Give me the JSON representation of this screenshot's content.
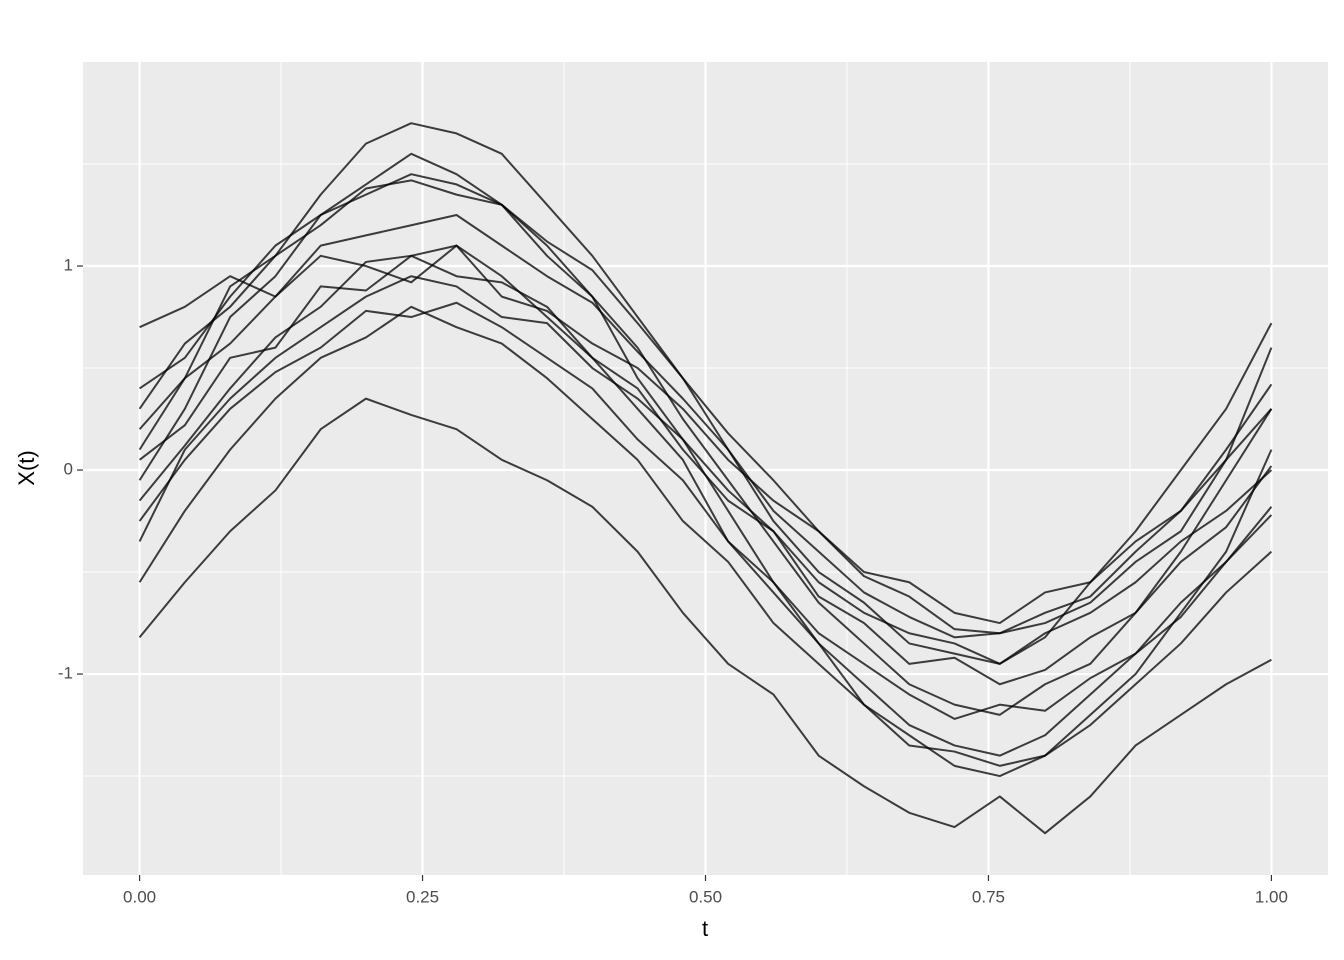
{
  "chart_data": {
    "type": "line",
    "xlabel": "t",
    "ylabel": "X(t)",
    "color": "#000000",
    "alpha": 0.75,
    "xlim": [
      -0.05,
      1.05
    ],
    "ylim": [
      -1.985,
      2.0
    ],
    "xticks": [
      {
        "value": 0,
        "label": "0.00"
      },
      {
        "value": 0.25,
        "label": "0.25"
      },
      {
        "value": 0.5,
        "label": "0.50"
      },
      {
        "value": 0.75,
        "label": "0.75"
      },
      {
        "value": 1,
        "label": "1.00"
      }
    ],
    "yticks": [
      -1,
      0,
      1
    ],
    "grid": true,
    "x": [
      0,
      0.04,
      0.08,
      0.12,
      0.16,
      0.2,
      0.24,
      0.28,
      0.32,
      0.36,
      0.4,
      0.44,
      0.48,
      0.52,
      0.56,
      0.6,
      0.64,
      0.68,
      0.72,
      0.76,
      0.8,
      0.84,
      0.88,
      0.92,
      0.96,
      1
    ],
    "series": [
      {
        "values": [
          0.3,
          0.62,
          0.8,
          1.05,
          1.2,
          1.38,
          1.42,
          1.35,
          1.3,
          1.12,
          0.98,
          0.72,
          0.45,
          0.18,
          -0.05,
          -0.3,
          -0.52,
          -0.62,
          -0.78,
          -0.8,
          -0.7,
          -0.62,
          -0.4,
          -0.2,
          0.1,
          0.42
        ]
      },
      {
        "values": [
          0.05,
          0.22,
          0.55,
          0.6,
          0.9,
          0.88,
          1.05,
          0.95,
          0.92,
          0.8,
          0.55,
          0.4,
          0.1,
          -0.15,
          -0.3,
          -0.62,
          -0.75,
          -0.95,
          -0.92,
          -1.05,
          -0.98,
          -0.82,
          -0.7,
          -0.45,
          -0.28,
          0.02
        ]
      },
      {
        "values": [
          -0.25,
          0.05,
          0.3,
          0.48,
          0.6,
          0.78,
          0.75,
          0.82,
          0.7,
          0.55,
          0.4,
          0.15,
          -0.05,
          -0.35,
          -0.55,
          -0.8,
          -0.95,
          -1.1,
          -1.22,
          -1.15,
          -1.18,
          -1.02,
          -0.9,
          -0.65,
          -0.45,
          -0.22
        ]
      },
      {
        "values": [
          0.4,
          0.55,
          0.85,
          1.1,
          1.25,
          1.4,
          1.55,
          1.45,
          1.3,
          1.1,
          0.85,
          0.6,
          0.25,
          -0.05,
          -0.35,
          -0.65,
          -0.85,
          -1.05,
          -1.15,
          -1.2,
          -1.05,
          -0.95,
          -0.7,
          -0.4,
          -0.05,
          0.3
        ]
      },
      {
        "values": [
          -0.15,
          0.12,
          0.4,
          0.65,
          0.8,
          1.02,
          1.05,
          1.1,
          0.95,
          0.75,
          0.55,
          0.3,
          0.05,
          -0.35,
          -0.6,
          -0.85,
          -1.05,
          -1.25,
          -1.35,
          -1.4,
          -1.3,
          -1.1,
          -0.9,
          -0.72,
          -0.45,
          -0.18
        ]
      },
      {
        "values": [
          0.7,
          0.8,
          0.95,
          0.85,
          1.05,
          1.0,
          0.92,
          1.1,
          0.85,
          0.78,
          0.62,
          0.5,
          0.3,
          0.05,
          -0.15,
          -0.3,
          -0.5,
          -0.55,
          -0.7,
          -0.75,
          -0.6,
          -0.55,
          -0.35,
          -0.2,
          0.05,
          0.3
        ]
      },
      {
        "values": [
          -0.05,
          0.3,
          0.75,
          0.95,
          1.25,
          1.35,
          1.45,
          1.4,
          1.3,
          1.05,
          0.85,
          0.45,
          0.15,
          -0.2,
          -0.55,
          -0.85,
          -1.15,
          -1.3,
          -1.45,
          -1.5,
          -1.4,
          -1.2,
          -1.0,
          -0.7,
          -0.4,
          0.1
        ]
      },
      {
        "values": [
          -0.35,
          0.1,
          0.35,
          0.55,
          0.7,
          0.85,
          0.95,
          0.9,
          0.75,
          0.72,
          0.5,
          0.35,
          0.15,
          -0.1,
          -0.3,
          -0.55,
          -0.7,
          -0.8,
          -0.85,
          -0.95,
          -0.8,
          -0.7,
          -0.55,
          -0.35,
          -0.2,
          0.0
        ]
      },
      {
        "values": [
          0.2,
          0.45,
          0.62,
          0.85,
          1.1,
          1.15,
          1.2,
          1.25,
          1.1,
          0.95,
          0.82,
          0.58,
          0.35,
          0.1,
          -0.2,
          -0.4,
          -0.6,
          -0.72,
          -0.82,
          -0.8,
          -0.75,
          -0.65,
          -0.45,
          -0.3,
          0.05,
          0.6
        ]
      },
      {
        "values": [
          -0.82,
          -0.55,
          -0.3,
          -0.1,
          0.2,
          0.35,
          0.27,
          0.2,
          0.05,
          -0.05,
          -0.18,
          -0.4,
          -0.7,
          -0.95,
          -1.1,
          -1.4,
          -1.55,
          -1.68,
          -1.75,
          -1.6,
          -1.78,
          -1.6,
          -1.35,
          -1.2,
          -1.05,
          -0.93
        ]
      },
      {
        "values": [
          -0.55,
          -0.2,
          0.1,
          0.35,
          0.55,
          0.65,
          0.8,
          0.7,
          0.62,
          0.45,
          0.25,
          0.05,
          -0.25,
          -0.45,
          -0.75,
          -0.95,
          -1.15,
          -1.35,
          -1.38,
          -1.45,
          -1.4,
          -1.25,
          -1.05,
          -0.85,
          -0.6,
          -0.4
        ]
      },
      {
        "values": [
          0.1,
          0.45,
          0.9,
          1.05,
          1.35,
          1.6,
          1.7,
          1.65,
          1.55,
          1.3,
          1.05,
          0.75,
          0.45,
          0.1,
          -0.25,
          -0.5,
          -0.65,
          -0.85,
          -0.9,
          -0.95,
          -0.82,
          -0.55,
          -0.3,
          0.0,
          0.3,
          0.72
        ]
      }
    ]
  }
}
